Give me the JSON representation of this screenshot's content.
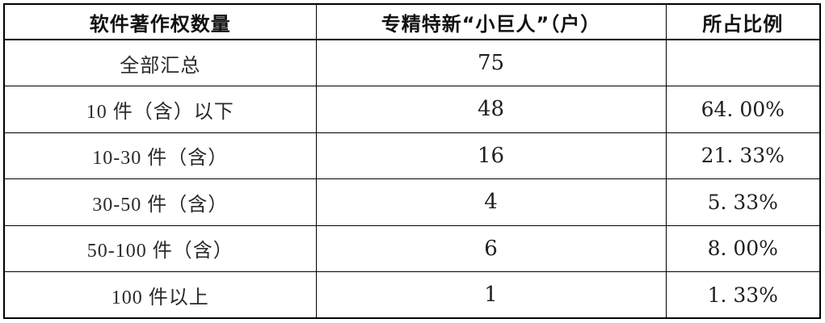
{
  "page": {
    "background": "#ffffff",
    "border_color": "#000000",
    "text_color": "#1c1c1c"
  },
  "table": {
    "headers": {
      "category": "软件著作权数量",
      "count": "专精特新“小巨人”（户）",
      "ratio": "所占比例"
    },
    "rows": [
      {
        "category": "全部汇总",
        "count": "75",
        "ratio": ""
      },
      {
        "category": "10 件（含）以下",
        "count": "48",
        "ratio": "64. 00%"
      },
      {
        "category": "10-30 件（含）",
        "count": "16",
        "ratio": "21. 33%"
      },
      {
        "category": "30-50 件（含）",
        "count": "4",
        "ratio": "5. 33%"
      },
      {
        "category": "50-100 件（含）",
        "count": "6",
        "ratio": "8. 00%"
      },
      {
        "category": "100 件以上",
        "count": "1",
        "ratio": "1. 33%"
      }
    ]
  },
  "chart_data": {
    "type": "table",
    "title": "",
    "columns": [
      "软件著作权数量",
      "专精特新“小巨人”（户）",
      "所占比例"
    ],
    "categories": [
      "全部汇总",
      "10 件（含）以下",
      "10-30 件（含）",
      "30-50 件（含）",
      "50-100 件（含）",
      "100 件以上"
    ],
    "series": [
      {
        "name": "专精特新“小巨人”（户）",
        "values": [
          75,
          48,
          16,
          4,
          6,
          1
        ]
      },
      {
        "name": "所占比例(%)",
        "values": [
          null,
          64.0,
          21.33,
          5.33,
          8.0,
          1.33
        ]
      }
    ]
  }
}
